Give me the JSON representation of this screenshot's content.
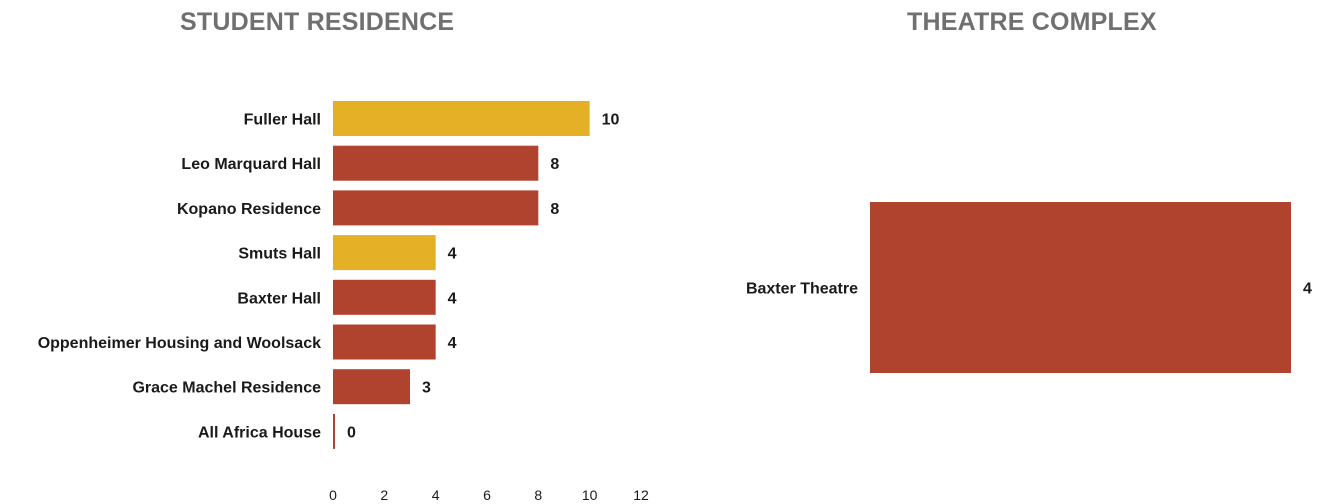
{
  "chart_data": [
    {
      "type": "bar",
      "orientation": "horizontal",
      "title": "STUDENT RESIDENCE",
      "categories": [
        "Fuller Hall",
        "Leo Marquard Hall",
        "Kopano Residence",
        "Smuts Hall",
        "Baxter Hall",
        "Oppenheimer Housing and Woolsack",
        "Grace Machel Residence",
        "All Africa House"
      ],
      "values": [
        10,
        8,
        8,
        4,
        4,
        4,
        3,
        0
      ],
      "bar_colors": [
        "#e3b026",
        "#b0432e",
        "#b0432e",
        "#e3b026",
        "#b0432e",
        "#b0432e",
        "#b0432e",
        "#b0432e"
      ],
      "xlim": [
        0,
        12
      ],
      "x_ticks": [
        0,
        2,
        4,
        6,
        8,
        10,
        12
      ],
      "grid": false,
      "xlabel": "",
      "ylabel": ""
    },
    {
      "type": "bar",
      "orientation": "horizontal",
      "title": "THEATRE COMPLEX",
      "categories": [
        "Baxter Theatre"
      ],
      "values": [
        4
      ],
      "bar_colors": [
        "#b0432e"
      ],
      "grid": false,
      "xlabel": "",
      "ylabel": ""
    }
  ]
}
